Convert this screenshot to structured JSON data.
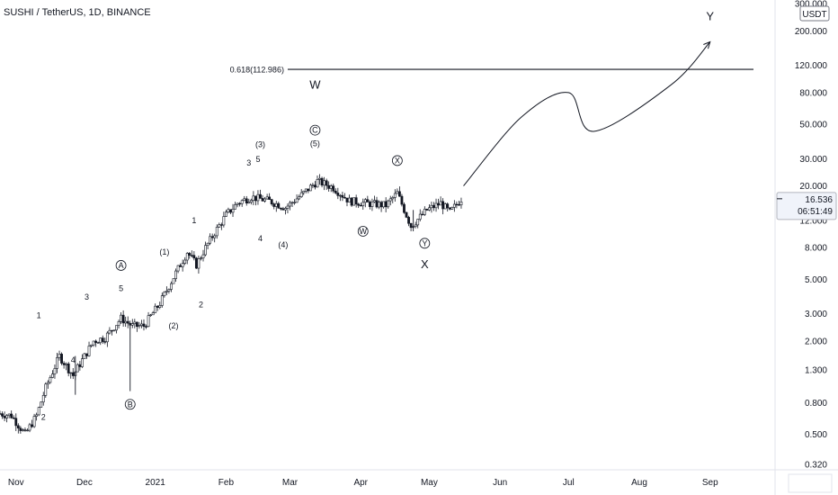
{
  "header": {
    "title": "SUSHI / TetherUS, 1D, BINANCE"
  },
  "price_axis": {
    "currency": "USDT",
    "last_price": "16.536",
    "countdown": "06:51:49"
  },
  "chart_data": {
    "type": "candlestick",
    "symbol": "SUSHI / TetherUS",
    "timeframe": "1D",
    "exchange": "BINANCE",
    "y_scale": "log",
    "ylim": [
      0.28,
      320
    ],
    "y_ticks": [
      "300.000",
      "200.000",
      "120.000",
      "80.000",
      "50.000",
      "30.000",
      "20.000",
      "12.000",
      "8.000",
      "5.000",
      "3.000",
      "2.000",
      "1.300",
      "0.800",
      "0.500",
      "0.320"
    ],
    "x_ticks": [
      "Nov",
      "Dec",
      "2021",
      "Feb",
      "Mar",
      "Apr",
      "May",
      "Jun",
      "Jul",
      "Aug",
      "Sep"
    ],
    "close_series": [
      {
        "date": "2020-10-25",
        "close": 0.68
      },
      {
        "date": "2020-10-30",
        "close": 0.66
      },
      {
        "date": "2020-11-05",
        "close": 0.5
      },
      {
        "date": "2020-11-10",
        "close": 0.66
      },
      {
        "date": "2020-11-14",
        "close": 1.0
      },
      {
        "date": "2020-11-20",
        "close": 1.6
      },
      {
        "date": "2020-11-26",
        "close": 1.2
      },
      {
        "date": "2020-12-05",
        "close": 2.0
      },
      {
        "date": "2020-12-10",
        "close": 2.1
      },
      {
        "date": "2020-12-17",
        "close": 2.8
      },
      {
        "date": "2020-12-22",
        "close": 2.5
      },
      {
        "date": "2020-12-27",
        "close": 2.5
      },
      {
        "date": "2021-01-03",
        "close": 3.5
      },
      {
        "date": "2021-01-10",
        "close": 5.5
      },
      {
        "date": "2021-01-15",
        "close": 7.5
      },
      {
        "date": "2021-01-19",
        "close": 6.2
      },
      {
        "date": "2021-01-23",
        "close": 8.0
      },
      {
        "date": "2021-01-27",
        "close": 10.0
      },
      {
        "date": "2021-02-01",
        "close": 13.0
      },
      {
        "date": "2021-02-06",
        "close": 15.5
      },
      {
        "date": "2021-02-12",
        "close": 17.0
      },
      {
        "date": "2021-02-20",
        "close": 16.0
      },
      {
        "date": "2021-02-27",
        "close": 14.5
      },
      {
        "date": "2021-03-06",
        "close": 17.5
      },
      {
        "date": "2021-03-13",
        "close": 21.5
      },
      {
        "date": "2021-03-20",
        "close": 19.5
      },
      {
        "date": "2021-03-27",
        "close": 16.0
      },
      {
        "date": "2021-04-03",
        "close": 15.5
      },
      {
        "date": "2021-04-12",
        "close": 15.0
      },
      {
        "date": "2021-04-17",
        "close": 18.0
      },
      {
        "date": "2021-04-23",
        "close": 11.0
      },
      {
        "date": "2021-04-30",
        "close": 14.0
      },
      {
        "date": "2021-05-06",
        "close": 15.5
      },
      {
        "date": "2021-05-10",
        "close": 13.5
      },
      {
        "date": "2021-05-15",
        "close": 16.5
      }
    ],
    "projection": [
      {
        "date": "2021-05-16",
        "price": 20
      },
      {
        "date": "2021-06-10",
        "price": 55
      },
      {
        "date": "2021-07-01",
        "price": 80
      },
      {
        "date": "2021-07-12",
        "price": 45
      },
      {
        "date": "2021-08-15",
        "price": 90
      },
      {
        "date": "2021-09-01",
        "price": 170
      }
    ],
    "level_line": {
      "label": "0.618(112.986)",
      "price": 112.986,
      "from": "2021-02-28",
      "to": "2021-09-20"
    },
    "wave_labels": [
      {
        "text": "2",
        "date": "2020-11-13",
        "price": 0.62,
        "circled": false
      },
      {
        "text": "1",
        "date": "2020-11-11",
        "price": 2.8,
        "circled": false
      },
      {
        "text": "4",
        "date": "2020-11-26",
        "price": 1.45,
        "circled": false
      },
      {
        "text": "3",
        "date": "2020-12-02",
        "price": 3.7,
        "circled": false
      },
      {
        "text": "5",
        "date": "2020-12-17",
        "price": 4.2,
        "circled": false
      },
      {
        "text": "A",
        "date": "2020-12-17",
        "price": 5.9,
        "circled": true
      },
      {
        "text": "B",
        "date": "2020-12-21",
        "price": 0.75,
        "circled": true
      },
      {
        "text": "(2)",
        "date": "2021-01-09",
        "price": 2.4,
        "circled": false
      },
      {
        "text": "(1)",
        "date": "2021-01-05",
        "price": 7.2,
        "circled": false
      },
      {
        "text": "2",
        "date": "2021-01-21",
        "price": 3.3,
        "circled": false
      },
      {
        "text": "1",
        "date": "2021-01-18",
        "price": 11.5,
        "circled": false
      },
      {
        "text": "4",
        "date": "2021-02-16",
        "price": 8.8,
        "circled": false
      },
      {
        "text": "3",
        "date": "2021-02-11",
        "price": 27.0,
        "circled": false
      },
      {
        "text": "5",
        "date": "2021-02-15",
        "price": 28.5,
        "circled": false
      },
      {
        "text": "(3)",
        "date": "2021-02-16",
        "price": 35.5,
        "circled": false
      },
      {
        "text": "(4)",
        "date": "2021-02-26",
        "price": 8.0,
        "circled": false
      },
      {
        "text": "C",
        "date": "2021-03-12",
        "price": 44.0,
        "circled": true
      },
      {
        "text": "(5)",
        "date": "2021-03-12",
        "price": 36.0,
        "circled": false
      },
      {
        "text": "W",
        "date": "2021-03-12",
        "price": 85.0,
        "circled": false,
        "large": true
      },
      {
        "text": "W",
        "date": "2021-04-02",
        "price": 9.8,
        "circled": true
      },
      {
        "text": "X",
        "date": "2021-04-17",
        "price": 28.0,
        "circled": true
      },
      {
        "text": "Y",
        "date": "2021-04-29",
        "price": 8.2,
        "circled": true
      },
      {
        "text": "X",
        "date": "2021-04-29",
        "price": 5.9,
        "circled": false,
        "large": true
      },
      {
        "text": "Y",
        "date": "2021-09-01",
        "price": 235.0,
        "circled": false,
        "large": true
      }
    ]
  }
}
